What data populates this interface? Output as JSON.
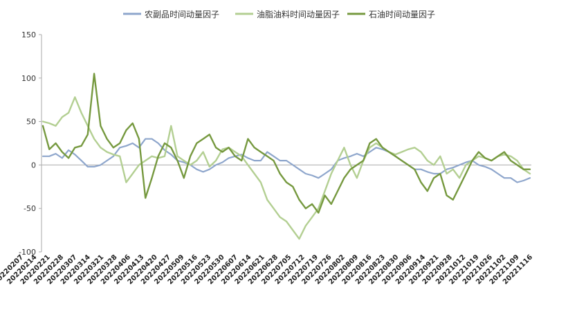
{
  "chart_data": {
    "type": "line",
    "title": "",
    "xlabel": "",
    "ylabel": "",
    "ylim": [
      -100,
      150
    ],
    "yticks": [
      -100,
      -50,
      0,
      50,
      100,
      150
    ],
    "grid": false,
    "legend": "top",
    "x_tick_labels": [
      "20220207",
      "20220214",
      "20220221",
      "20220228",
      "20220307",
      "20220314",
      "20220321",
      "20220328",
      "20220406",
      "20220413",
      "20220420",
      "20220427",
      "20220509",
      "20220516",
      "20220523",
      "20220530",
      "20220607",
      "20220614",
      "20220621",
      "20220628",
      "20220705",
      "20220712",
      "20220719",
      "20220726",
      "20220802",
      "20220809",
      "20220816",
      "20220823",
      "20220830",
      "20220906",
      "20220914",
      "20220921",
      "20220928",
      "20221012",
      "20221019",
      "20221026",
      "20221102",
      "20221109",
      "20221116"
    ],
    "series": [
      {
        "name": "农副品时间动量因子",
        "color": "#8ea6cc",
        "values": [
          10,
          10,
          13,
          8,
          17,
          12,
          5,
          -2,
          -2,
          0,
          5,
          10,
          20,
          22,
          25,
          20,
          30,
          30,
          25,
          17,
          12,
          5,
          3,
          0,
          -5,
          -8,
          -5,
          0,
          3,
          8,
          10,
          12,
          8,
          5,
          5,
          15,
          10,
          5,
          5,
          0,
          -5,
          -10,
          -12,
          -15,
          -10,
          -5,
          5,
          8,
          10,
          13,
          10,
          15,
          20,
          18,
          15,
          10,
          5,
          0,
          -5,
          -5,
          -8,
          -10,
          -10,
          -5,
          -3,
          0,
          3,
          5,
          0,
          -2,
          -5,
          -10,
          -15,
          -15,
          -20,
          -18,
          -15
        ]
      },
      {
        "name": "油脂油料时间动量因子",
        "color": "#b3cf92",
        "values": [
          50,
          48,
          45,
          55,
          60,
          78,
          60,
          45,
          30,
          20,
          15,
          12,
          10,
          -20,
          -10,
          0,
          5,
          10,
          8,
          10,
          45,
          10,
          5,
          0,
          5,
          15,
          -2,
          5,
          18,
          20,
          15,
          10,
          0,
          -10,
          -20,
          -40,
          -50,
          -60,
          -65,
          -75,
          -85,
          -70,
          -60,
          -50,
          -30,
          -10,
          5,
          20,
          0,
          -15,
          5,
          20,
          25,
          20,
          15,
          12,
          15,
          18,
          20,
          15,
          5,
          0,
          10,
          -10,
          -5,
          -15,
          0,
          5,
          10,
          8,
          5,
          10,
          12,
          10,
          5,
          -5,
          -10
        ]
      },
      {
        "name": "石油时间动量因子",
        "color": "#76993f",
        "values": [
          45,
          18,
          25,
          15,
          8,
          20,
          22,
          35,
          105,
          45,
          30,
          20,
          25,
          40,
          48,
          30,
          -38,
          -15,
          10,
          25,
          20,
          5,
          -15,
          10,
          25,
          30,
          35,
          20,
          15,
          20,
          10,
          5,
          30,
          20,
          15,
          10,
          5,
          -10,
          -20,
          -25,
          -40,
          -50,
          -45,
          -55,
          -35,
          -45,
          -30,
          -15,
          -5,
          0,
          5,
          25,
          30,
          20,
          15,
          10,
          5,
          0,
          -5,
          -20,
          -30,
          -15,
          -10,
          -35,
          -40,
          -25,
          -10,
          5,
          15,
          8,
          5,
          10,
          15,
          5,
          0,
          -5,
          -5
        ]
      }
    ]
  }
}
